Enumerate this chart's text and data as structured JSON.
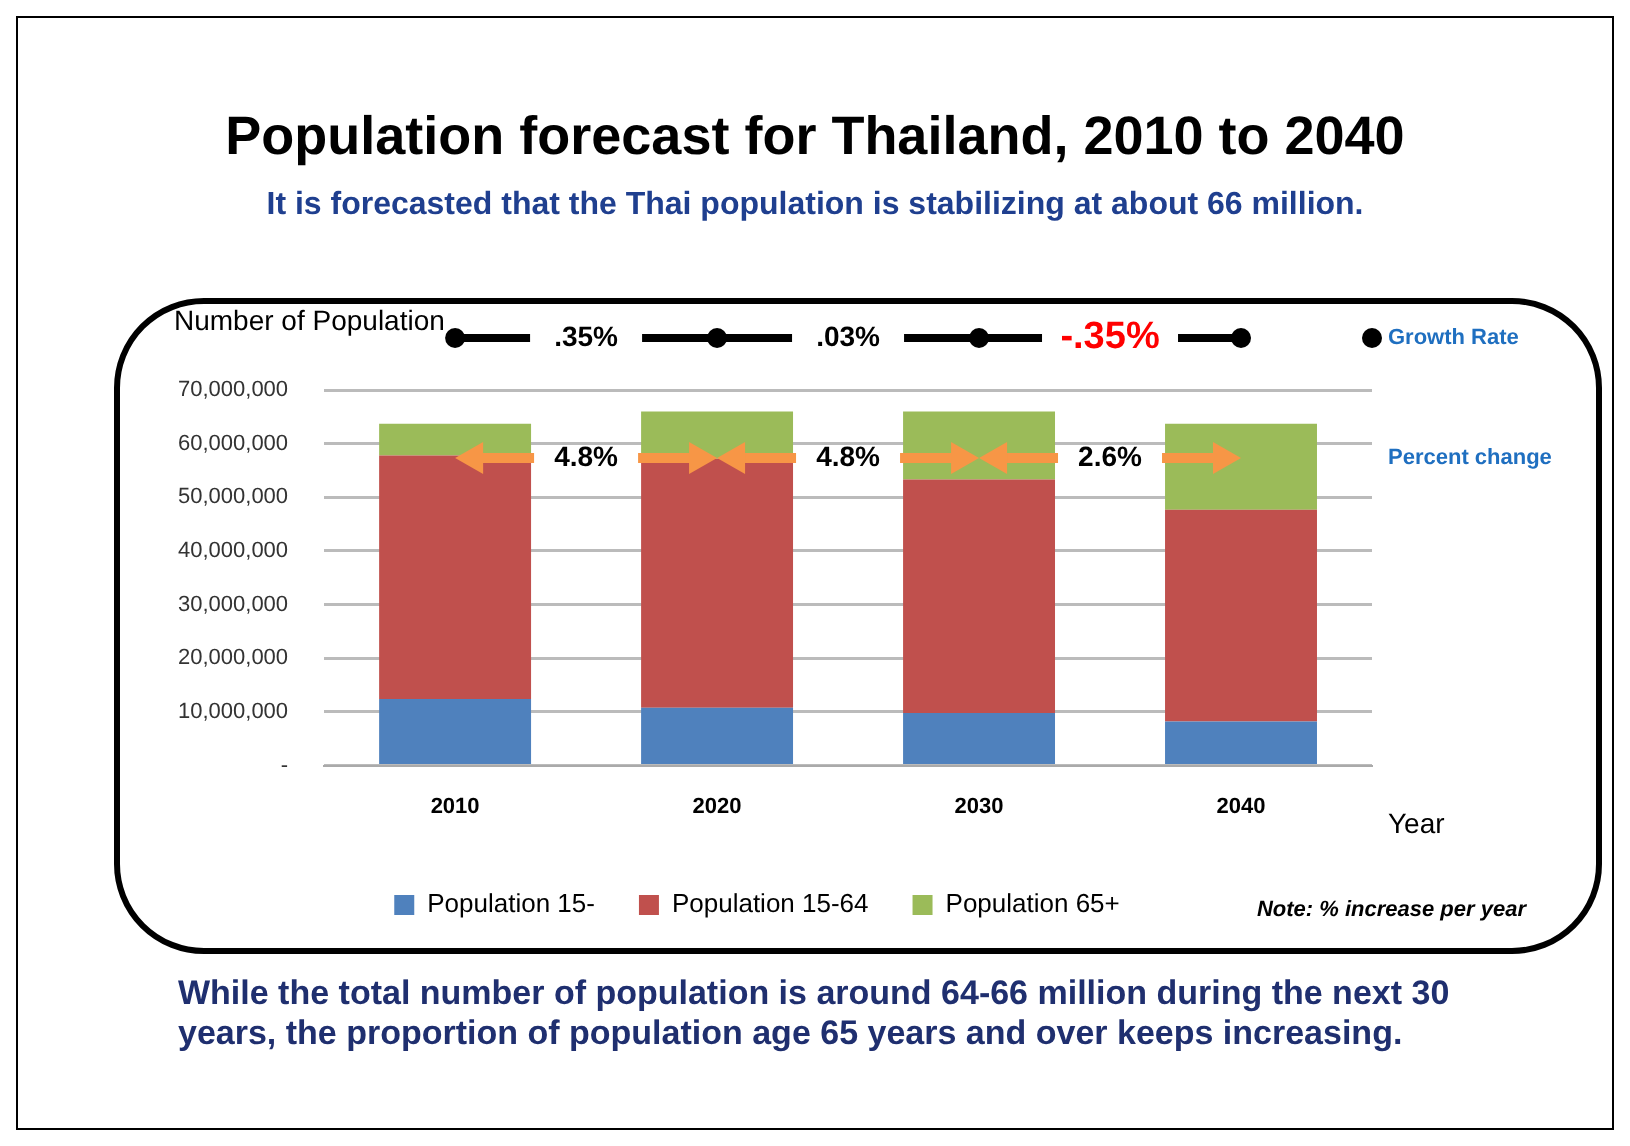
{
  "chart_data": {
    "type": "bar",
    "title": "Population forecast for Thailand, 2010 to 2040",
    "subtitle": "It is forecasted that the Thai population is stabilizing at about 66 million.",
    "ylabel": "Number of Population",
    "xlabel": "Year",
    "categories": [
      "2010",
      "2020",
      "2030",
      "2040"
    ],
    "stacked": true,
    "series": [
      {
        "name": "Population 15-",
        "color": "#4f81bd",
        "values": [
          12400000,
          10800000,
          9800000,
          8200000
        ]
      },
      {
        "name": "Population 15-64",
        "color": "#c0504d",
        "values": [
          45400000,
          46400000,
          43500000,
          39500000
        ]
      },
      {
        "name": "Population 65+",
        "color": "#9bbb59",
        "values": [
          5900000,
          8800000,
          12700000,
          16000000
        ]
      }
    ],
    "ylim": [
      0,
      70000000
    ],
    "yticks": [
      {
        "value": 0,
        "label": "-"
      },
      {
        "value": 10000000,
        "label": "10,000,000"
      },
      {
        "value": 20000000,
        "label": "20,000,000"
      },
      {
        "value": 30000000,
        "label": "30,000,000"
      },
      {
        "value": 40000000,
        "label": "40,000,000"
      },
      {
        "value": 50000000,
        "label": "50,000,000"
      },
      {
        "value": 60000000,
        "label": "60,000,000"
      },
      {
        "value": 70000000,
        "label": "70,000,000"
      }
    ],
    "grid": "y",
    "legend": "bottom",
    "annotations": [
      ".35%",
      ".03%",
      "-.35%",
      "Growth Rate",
      "4.8%",
      "4.8%",
      "2.6%",
      "Percent change",
      "Note: % increase per year",
      "While the total number of population is around 64-66 million during the next 30 years, the proportion of population age 65 years and over keeps increasing."
    ]
  }
}
